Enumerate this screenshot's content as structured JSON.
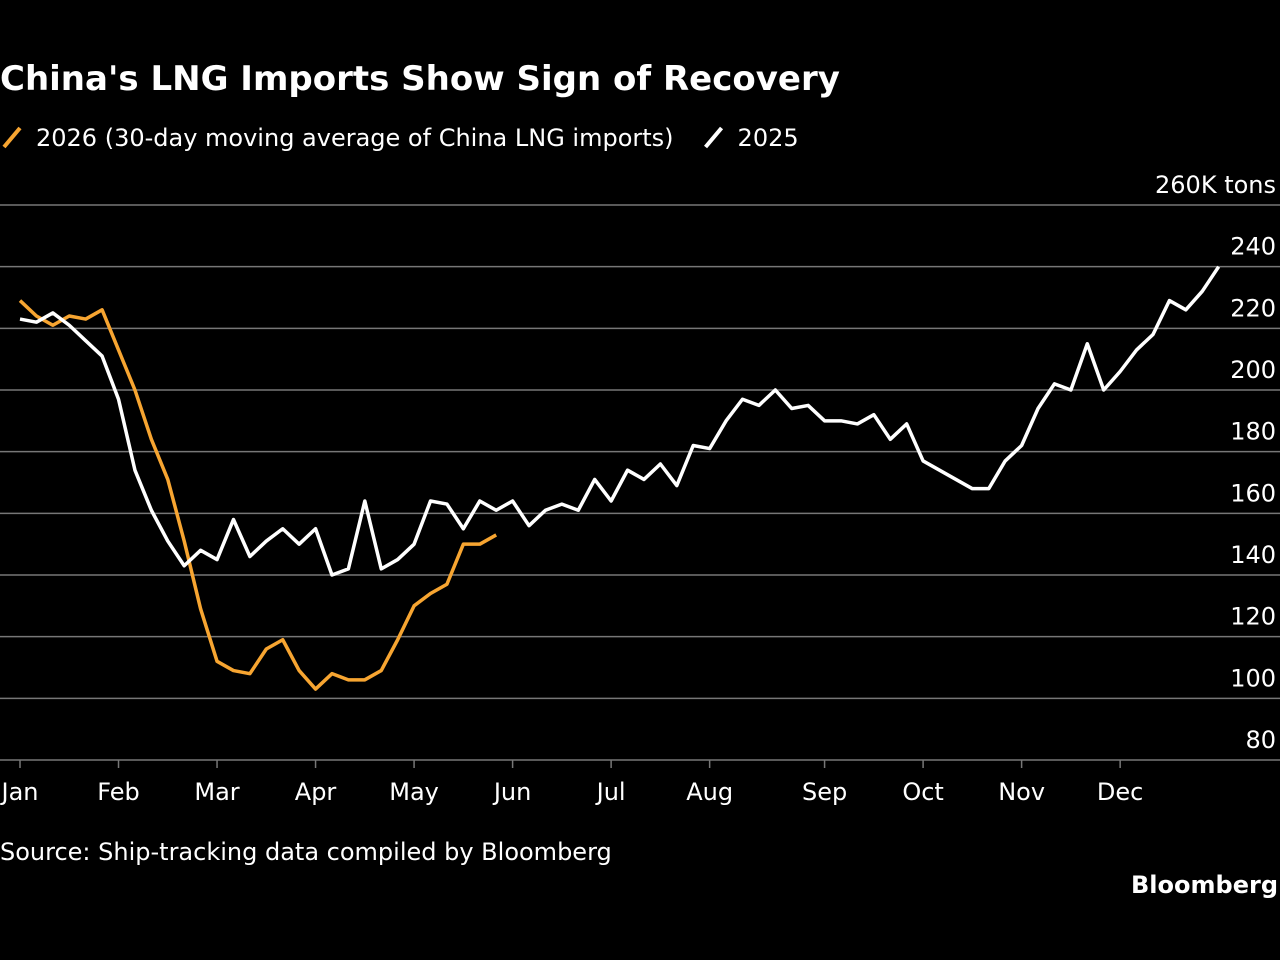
{
  "chart_data": {
    "type": "line",
    "title": "China's LNG Imports Show Sign of Recovery",
    "source": "Source: Ship-tracking data compiled by Bloomberg",
    "brand": "Bloomberg",
    "categories": [
      "Jan",
      null,
      null,
      null,
      null,
      null,
      "Feb",
      null,
      null,
      null,
      null,
      null,
      "Mar",
      null,
      null,
      null,
      null,
      null,
      "Apr",
      null,
      null,
      null,
      null,
      null,
      "May",
      null,
      null,
      null,
      null,
      null,
      "Jun",
      null,
      null,
      null,
      null,
      null,
      "Jul",
      null,
      null,
      null,
      null,
      null,
      "Aug",
      null,
      null,
      null,
      null,
      null,
      null,
      "Sep",
      null,
      null,
      null,
      null,
      null,
      "Oct",
      null,
      null,
      null,
      null,
      null,
      "Nov",
      null,
      null,
      null,
      null,
      null,
      "Dec",
      null,
      null,
      null,
      null,
      null,
      null
    ],
    "series": [
      {
        "name": "2026 (30-day moving average of China LNG imports)",
        "color": "#f7a531",
        "values": [
          229,
          224,
          221,
          224,
          223,
          226,
          213,
          200,
          184,
          171,
          151,
          129,
          112,
          109,
          108,
          116,
          119,
          109,
          103,
          108,
          106,
          106,
          109,
          119,
          130,
          134,
          137,
          150,
          150,
          153,
          null,
          null,
          null,
          null,
          null,
          null,
          null,
          null,
          null,
          null,
          null,
          null,
          null,
          null,
          null,
          null,
          null,
          null,
          null,
          null,
          null,
          null,
          null,
          null,
          null,
          null,
          null,
          null,
          null,
          null,
          null,
          null,
          null,
          null,
          null,
          null,
          null,
          null,
          null,
          null,
          null,
          null,
          null,
          null
        ]
      },
      {
        "name": "2025",
        "color": "#ffffff",
        "values": [
          223,
          222,
          225,
          221,
          216,
          211,
          197,
          174,
          161,
          151,
          143,
          148,
          145,
          158,
          146,
          151,
          155,
          150,
          155,
          140,
          142,
          164,
          142,
          145,
          150,
          164,
          163,
          155,
          164,
          161,
          164,
          156,
          161,
          163,
          161,
          171,
          164,
          174,
          171,
          176,
          169,
          182,
          181,
          190,
          197,
          195,
          200,
          194,
          195,
          190,
          190,
          189,
          192,
          184,
          189,
          177,
          174,
          171,
          168,
          168,
          177,
          182,
          194,
          202,
          200,
          215,
          200,
          206,
          213,
          218,
          229,
          226,
          232,
          240
        ]
      }
    ],
    "ylim": [
      80,
      260
    ],
    "yticks": [
      80,
      100,
      120,
      140,
      160,
      180,
      200,
      220,
      240,
      {
        "value": 260,
        "label": "260K tons"
      }
    ],
    "grid": true
  }
}
